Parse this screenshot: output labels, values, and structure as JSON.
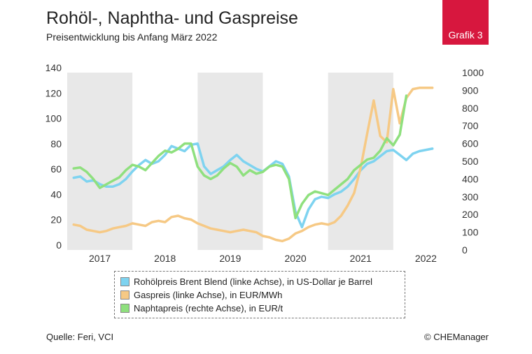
{
  "header": {
    "title": "Rohöl-, Naphtha- und Gaspreise",
    "subtitle": "Preisentwicklung bis Anfang März 2022",
    "badge": "Grafik 3"
  },
  "footer": {
    "source": "Quelle: Feri, VCI",
    "copyright": "© CHEManager"
  },
  "chart_data": {
    "type": "line",
    "x_tick_labels": [
      "2017",
      "2018",
      "2019",
      "2020",
      "2021",
      "2022"
    ],
    "left_axis": {
      "ticks": [
        0,
        20,
        40,
        60,
        80,
        100,
        120,
        140
      ],
      "ylim": [
        0,
        140
      ]
    },
    "right_axis": {
      "ticks": [
        0,
        100,
        200,
        300,
        400,
        500,
        600,
        700,
        800,
        900,
        1000
      ],
      "ylim": [
        0,
        1000
      ]
    },
    "shaded_years": [
      "2017",
      "2019",
      "2021"
    ],
    "series": [
      {
        "name": "Rohölpreis Brent Blend (linke Achse), in US-Dollar je Barrel",
        "color": "#7ed3f0",
        "axis": "left",
        "x": [
          2016.6,
          2016.7,
          2016.8,
          2016.9,
          2017.0,
          2017.1,
          2017.2,
          2017.3,
          2017.4,
          2017.5,
          2017.6,
          2017.7,
          2017.8,
          2017.9,
          2018.0,
          2018.1,
          2018.2,
          2018.3,
          2018.4,
          2018.5,
          2018.6,
          2018.7,
          2018.8,
          2018.9,
          2019.0,
          2019.1,
          2019.2,
          2019.3,
          2019.4,
          2019.5,
          2019.6,
          2019.7,
          2019.8,
          2019.9,
          2020.0,
          2020.1,
          2020.2,
          2020.3,
          2020.4,
          2020.5,
          2020.6,
          2020.7,
          2020.8,
          2020.9,
          2021.0,
          2021.1,
          2021.2,
          2021.3,
          2021.4,
          2021.5,
          2021.6,
          2021.7,
          2021.8,
          2021.9,
          2022.1
        ],
        "values": [
          57,
          58,
          54,
          55,
          52,
          50,
          50,
          52,
          56,
          62,
          67,
          71,
          68,
          70,
          75,
          82,
          80,
          78,
          83,
          84,
          66,
          60,
          63,
          66,
          71,
          75,
          70,
          67,
          64,
          62,
          66,
          70,
          68,
          58,
          30,
          18,
          32,
          40,
          42,
          41,
          44,
          46,
          50,
          56,
          63,
          68,
          70,
          74,
          78,
          79,
          75,
          71,
          76,
          78,
          80
        ]
      },
      {
        "name": "Gaspreis (linke Achse), in EUR/MWh",
        "color": "#f6c985",
        "axis": "left",
        "x": [
          2016.6,
          2016.7,
          2016.8,
          2016.9,
          2017.0,
          2017.1,
          2017.2,
          2017.3,
          2017.4,
          2017.5,
          2017.6,
          2017.7,
          2017.8,
          2017.9,
          2018.0,
          2018.1,
          2018.2,
          2018.3,
          2018.4,
          2018.5,
          2018.6,
          2018.7,
          2018.8,
          2018.9,
          2019.0,
          2019.1,
          2019.2,
          2019.3,
          2019.4,
          2019.5,
          2019.6,
          2019.7,
          2019.8,
          2019.9,
          2020.0,
          2020.1,
          2020.2,
          2020.3,
          2020.4,
          2020.5,
          2020.6,
          2020.7,
          2020.8,
          2020.9,
          2021.0,
          2021.1,
          2021.2,
          2021.3,
          2021.4,
          2021.5,
          2021.6,
          2021.7,
          2021.8,
          2021.9,
          2022.1
        ],
        "values": [
          20,
          19,
          16,
          15,
          14,
          15,
          17,
          18,
          19,
          21,
          20,
          19,
          22,
          23,
          22,
          26,
          27,
          25,
          24,
          21,
          19,
          17,
          16,
          15,
          14,
          15,
          16,
          15,
          14,
          11,
          10,
          8,
          7,
          9,
          13,
          15,
          18,
          20,
          21,
          20,
          22,
          27,
          35,
          45,
          65,
          92,
          118,
          90,
          85,
          127,
          100,
          120,
          127,
          128,
          128
        ]
      },
      {
        "name": "Naphtapreis (rechte Achse), in EUR/t",
        "color": "#8fe07e",
        "axis": "right",
        "x": [
          2016.6,
          2016.7,
          2016.8,
          2016.9,
          2017.0,
          2017.1,
          2017.2,
          2017.3,
          2017.4,
          2017.5,
          2017.6,
          2017.7,
          2017.8,
          2017.9,
          2018.0,
          2018.1,
          2018.2,
          2018.3,
          2018.4,
          2018.5,
          2018.6,
          2018.7,
          2018.8,
          2018.9,
          2019.0,
          2019.1,
          2019.2,
          2019.3,
          2019.4,
          2019.5,
          2019.6,
          2019.7,
          2019.8,
          2019.9,
          2020.0,
          2020.1,
          2020.2,
          2020.3,
          2020.4,
          2020.5,
          2020.6,
          2020.7,
          2020.8,
          2020.9,
          2021.0,
          2021.1,
          2021.2,
          2021.3,
          2021.4,
          2021.5,
          2021.6,
          2021.7
        ],
        "values": [
          460,
          465,
          440,
          400,
          350,
          370,
          390,
          410,
          450,
          480,
          470,
          450,
          490,
          530,
          560,
          550,
          570,
          600,
          600,
          470,
          420,
          400,
          420,
          460,
          490,
          470,
          420,
          450,
          430,
          440,
          470,
          480,
          470,
          400,
          180,
          260,
          310,
          330,
          320,
          310,
          340,
          370,
          400,
          450,
          480,
          510,
          520,
          560,
          630,
          590,
          650,
          870
        ]
      }
    ]
  }
}
